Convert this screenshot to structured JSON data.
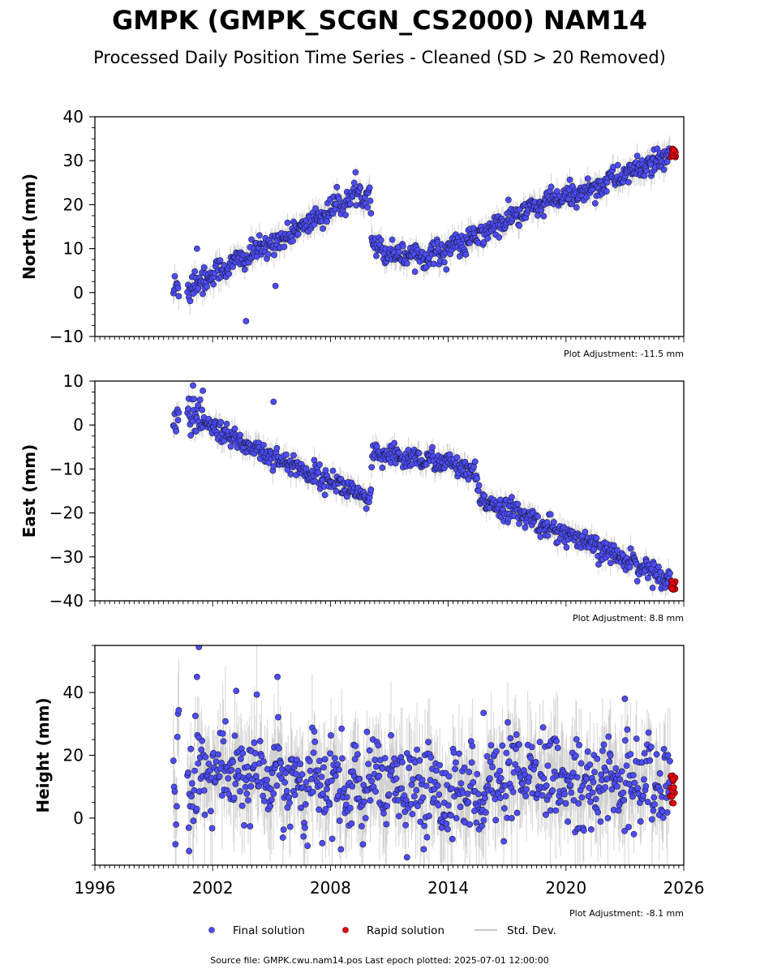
{
  "title": "GMPK (GMPK_SCGN_CS2000) NAM14",
  "subtitle": "Processed Daily Position Time Series - Cleaned (SD > 20 Removed)",
  "footer": "Source file: GMPK.cwu.nam14.pos  Last epoch plotted: 2025-07-01 12:00:00",
  "colors": {
    "final": "#4d4dff",
    "final_edge": "#1a1a33",
    "rapid": "#e8000b",
    "stddev": "#b3b3b3"
  },
  "legend": [
    {
      "key": "final",
      "label": "Final solution"
    },
    {
      "key": "rapid",
      "label": "Rapid solution"
    },
    {
      "key": "stddev",
      "label": "Std. Dev."
    }
  ],
  "chart_data": [
    {
      "type": "scatter",
      "ylabel": "North (mm)",
      "adjustment": "Plot Adjustment: -11.5 mm",
      "xlim": [
        1996,
        2026
      ],
      "ylim": [
        -10,
        40
      ],
      "yticks": [
        -10,
        0,
        10,
        20,
        30,
        40
      ],
      "xticks": [],
      "trend": [
        {
          "x": 2000.0,
          "y": 0.5
        },
        {
          "x": 2001.0,
          "y": 2.0
        },
        {
          "x": 2003.0,
          "y": 6.5
        },
        {
          "x": 2005.0,
          "y": 11.0
        },
        {
          "x": 2007.0,
          "y": 16.0
        },
        {
          "x": 2009.0,
          "y": 21.5
        },
        {
          "x": 2010.0,
          "y": 23.0
        },
        {
          "x": 2010.15,
          "y": 11.0
        },
        {
          "x": 2011.0,
          "y": 9.0
        },
        {
          "x": 2013.0,
          "y": 8.5
        },
        {
          "x": 2015.0,
          "y": 11.5
        },
        {
          "x": 2017.0,
          "y": 16.5
        },
        {
          "x": 2019.0,
          "y": 20.5
        },
        {
          "x": 2021.0,
          "y": 23.0
        },
        {
          "x": 2023.0,
          "y": 27.0
        },
        {
          "x": 2025.5,
          "y": 31.0
        }
      ],
      "scatter_sd": 1.3,
      "outliers": [
        {
          "x": 2003.7,
          "y": -6.5
        },
        {
          "x": 2005.2,
          "y": 1.5
        },
        {
          "x": 2001.2,
          "y": 10.0
        }
      ],
      "rapid": {
        "x": [
          2025.3,
          2025.6
        ],
        "y": [
          30.8,
          32.8
        ]
      }
    },
    {
      "type": "scatter",
      "ylabel": "East (mm)",
      "adjustment": "Plot Adjustment: 8.8 mm",
      "xlim": [
        1996,
        2026
      ],
      "ylim": [
        -40,
        10
      ],
      "yticks": [
        -40,
        -30,
        -20,
        -10,
        0,
        10
      ],
      "xticks": [],
      "trend": [
        {
          "x": 2000.0,
          "y": 2.0
        },
        {
          "x": 2001.0,
          "y": 2.0
        },
        {
          "x": 2003.0,
          "y": -3.0
        },
        {
          "x": 2005.0,
          "y": -7.0
        },
        {
          "x": 2007.0,
          "y": -11.0
        },
        {
          "x": 2009.0,
          "y": -14.5
        },
        {
          "x": 2010.0,
          "y": -18.0
        },
        {
          "x": 2010.15,
          "y": -7.0
        },
        {
          "x": 2012.0,
          "y": -7.5
        },
        {
          "x": 2014.0,
          "y": -8.5
        },
        {
          "x": 2015.4,
          "y": -11.5
        },
        {
          "x": 2015.6,
          "y": -17.0
        },
        {
          "x": 2017.0,
          "y": -19.0
        },
        {
          "x": 2019.0,
          "y": -23.0
        },
        {
          "x": 2021.0,
          "y": -27.0
        },
        {
          "x": 2023.0,
          "y": -30.5
        },
        {
          "x": 2025.5,
          "y": -35.5
        }
      ],
      "scatter_sd": 1.2,
      "outliers": [
        {
          "x": 2001.0,
          "y": 9.0
        },
        {
          "x": 2005.1,
          "y": 5.3
        },
        {
          "x": 2001.5,
          "y": 7.8
        }
      ],
      "rapid": {
        "x": [
          2025.3,
          2025.6
        ],
        "y": [
          -37.5,
          -35.5
        ]
      }
    },
    {
      "type": "scatter",
      "ylabel": "Height (mm)",
      "adjustment": "Plot Adjustment: -8.1 mm",
      "xlim": [
        1996,
        2026
      ],
      "ylim": [
        -15,
        55
      ],
      "yticks": [
        0,
        20,
        40
      ],
      "xticks": [
        1996,
        2002,
        2008,
        2014,
        2020,
        2026
      ],
      "trend": [
        {
          "x": 2000.0,
          "y": 14.0
        },
        {
          "x": 2003.0,
          "y": 14.0
        },
        {
          "x": 2009.0,
          "y": 9.0
        },
        {
          "x": 2015.5,
          "y": 9.0
        },
        {
          "x": 2018.0,
          "y": 12.0
        },
        {
          "x": 2025.5,
          "y": 11.0
        }
      ],
      "scatter_sd": 7.0,
      "outliers": [
        {
          "x": 2001.3,
          "y": 54.5
        },
        {
          "x": 2005.3,
          "y": 45.0
        },
        {
          "x": 2001.2,
          "y": 45.0
        },
        {
          "x": 2003.2,
          "y": 40.5
        },
        {
          "x": 2000.8,
          "y": -10.5
        },
        {
          "x": 2011.9,
          "y": -12.5
        },
        {
          "x": 2023.0,
          "y": 38.0
        },
        {
          "x": 2015.8,
          "y": 33.5
        }
      ],
      "rapid": {
        "x": [
          2025.3,
          2025.6
        ],
        "y": [
          4.5,
          14.5
        ]
      }
    }
  ]
}
